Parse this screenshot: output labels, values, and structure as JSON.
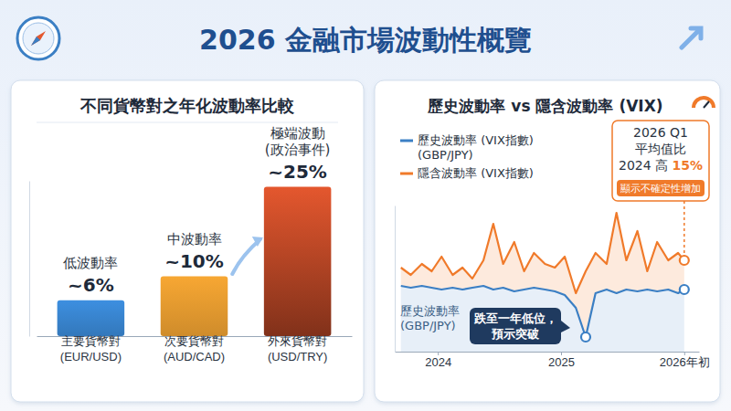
{
  "title": "2026 金融市場波動性概覽",
  "chart_data": [
    {
      "type": "bar",
      "title": "不同貨幣對之年化波動率比較",
      "categories": [
        "主要貨幣對\n(EUR/USD)",
        "次要貨幣對\n(AUD/CAD)",
        "外來貨幣對\n(USD/TRY)"
      ],
      "bar_titles": [
        "低波動率",
        "中波動率",
        "極端波動\n(政治事件)"
      ],
      "values": [
        6,
        10,
        25
      ],
      "value_labels": [
        "~6%",
        "~10%",
        "~25%"
      ],
      "colors": [
        "#3d8fe0",
        "#f7a733",
        "#e4572e"
      ],
      "ylim": [
        0,
        26
      ],
      "data_labels": true,
      "tick_labels": "x",
      "grid": false
    },
    {
      "type": "line",
      "title": "歷史波動率 vs 隱含波動率 (VIX)",
      "x": [
        2023.7,
        2023.78,
        2023.87,
        2023.95,
        2024.03,
        2024.12,
        2024.2,
        2024.28,
        2024.37,
        2024.45,
        2024.53,
        2024.62,
        2024.7,
        2024.78,
        2024.87,
        2024.95,
        2025.03,
        2025.12,
        2025.2,
        2025.28,
        2025.37,
        2025.45,
        2025.53,
        2025.62,
        2025.7,
        2025.78,
        2025.87,
        2025.95,
        2026.0
      ],
      "series": [
        {
          "name": "歷史波動率 (VIX指數)\n(GBP/JPY)",
          "color": "#3b7fc4",
          "values": [
            18,
            17.5,
            18,
            17.5,
            17,
            17.5,
            17,
            17.5,
            18,
            17,
            17.5,
            16.5,
            17,
            17.5,
            17,
            16.5,
            15.5,
            12,
            4,
            16,
            17,
            16,
            17,
            16.5,
            17,
            16.5,
            17,
            16,
            17
          ]
        },
        {
          "name": "隱含波動率 (VIX指數)",
          "color": "#f07a2a",
          "values": [
            23,
            21,
            24,
            22,
            26,
            21,
            23,
            20,
            25,
            35,
            24,
            30,
            22,
            27,
            24,
            23,
            26,
            16,
            22,
            27,
            24,
            38,
            25,
            33,
            22,
            30,
            25,
            27,
            25
          ]
        }
      ],
      "xlim": [
        2023.65,
        2026.12
      ],
      "xticks": [
        2024,
        2025,
        {
          "value": 2026,
          "label": "2026年初"
        }
      ],
      "ylim": [
        0,
        40
      ],
      "tick_labels": "x",
      "grid": false,
      "legend": "upper left",
      "annotations": {
        "series_label": "歷史波動率\n(GBP/JPY)",
        "low_callout": "跌至一年低位，\n預示突破",
        "summary": {
          "lines": [
            "2026 Q1",
            "平均值比"
          ],
          "change_prefix": "2024 高 ",
          "change": "15%",
          "tag": "顯示不確定性增加"
        }
      }
    }
  ]
}
